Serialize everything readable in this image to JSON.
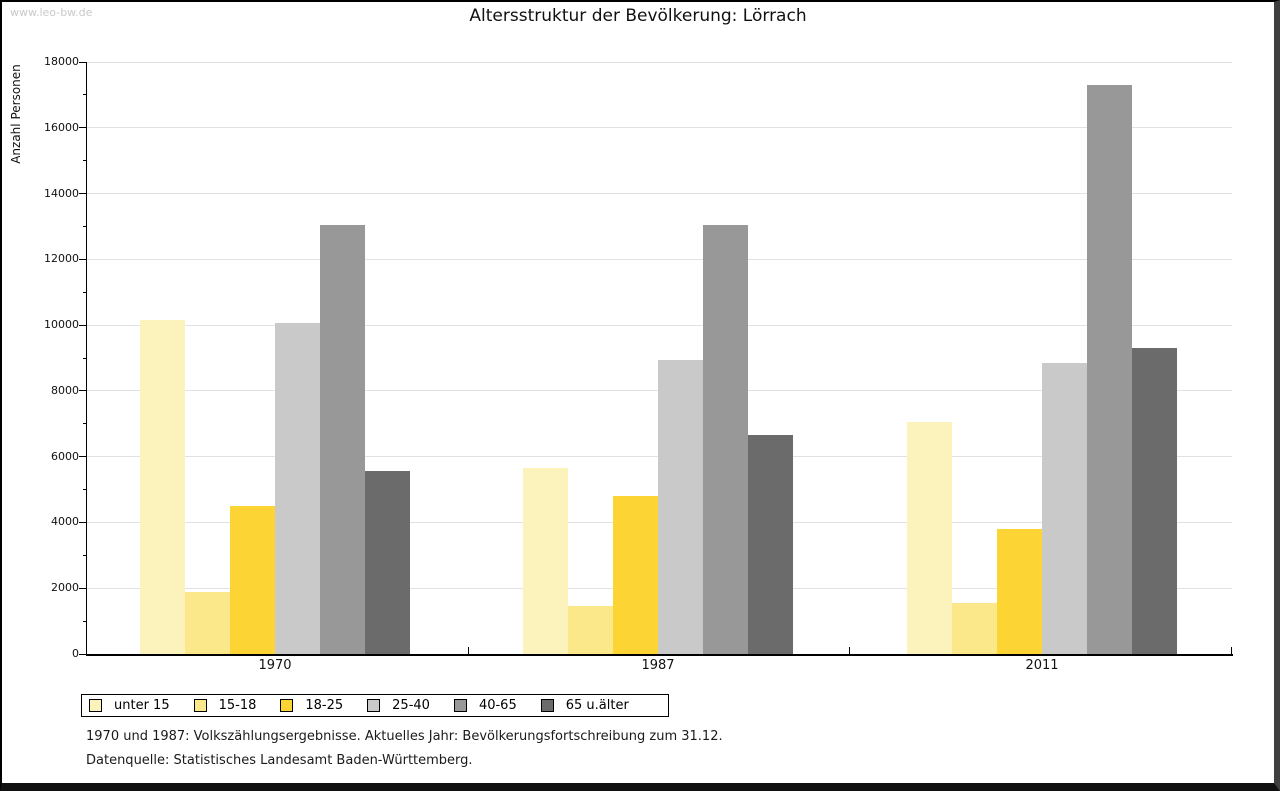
{
  "watermark": "www.leo-bw.de",
  "title": "Altersstruktur der Bevölkerung: Lörrach",
  "footer": {
    "line1": "1970 und 1987: Volkszählungsergebnisse. Aktuelles Jahr: Bevölkerungsfortschreibung zum 31.12.",
    "line2": "Datenquelle: Statistisches Landesamt Baden-Württemberg."
  },
  "chart_data": {
    "type": "bar",
    "title": "Altersstruktur der Bevölkerung: Lörrach",
    "categories": [
      "1970",
      "1987",
      "2011"
    ],
    "series": [
      {
        "name": "unter 15",
        "color": "#fbf2bc",
        "values": [
          10150,
          5650,
          7050
        ]
      },
      {
        "name": "15-18",
        "color": "#fbe88a",
        "values": [
          1900,
          1450,
          1550
        ]
      },
      {
        "name": "18-25",
        "color": "#fcd535",
        "values": [
          4500,
          4800,
          3800
        ]
      },
      {
        "name": "25-40",
        "color": "#c9c9c9",
        "values": [
          10050,
          8950,
          8850
        ]
      },
      {
        "name": "40-65",
        "color": "#989898",
        "values": [
          13050,
          13050,
          17300
        ]
      },
      {
        "name": "65 u.älter",
        "color": "#6b6b6b",
        "values": [
          5550,
          6650,
          9300
        ]
      }
    ],
    "xlabel": "",
    "ylabel": "Anzahl Personen",
    "ylim": [
      0,
      18000
    ],
    "ytick_step": 2000,
    "ytick_minor_step": 1000,
    "grid": true,
    "legend_position": "bottom-left"
  }
}
